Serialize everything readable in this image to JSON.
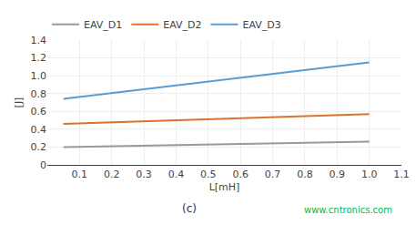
{
  "chart_data": {
    "type": "line",
    "xlabel": "L[mH]",
    "ylabel": "[J]",
    "series": [
      {
        "name": "EAV_D1",
        "color": "#999999",
        "x": [
          0.05,
          1.0
        ],
        "values": [
          0.2,
          0.26
        ]
      },
      {
        "name": "EAV_D2",
        "color": "#E07030",
        "x": [
          0.05,
          1.0
        ],
        "values": [
          0.46,
          0.57
        ]
      },
      {
        "name": "EAV_D3",
        "color": "#5B9BD5",
        "x": [
          0.05,
          1.0
        ],
        "values": [
          0.74,
          1.15
        ]
      }
    ],
    "xlim": [
      0.0,
      1.1
    ],
    "xticks": [
      0.1,
      0.2,
      0.3,
      0.4,
      0.5,
      0.6,
      0.7,
      0.8,
      0.9,
      {
        "value": 1.0,
        "label": "1.0"
      },
      1.1
    ],
    "ylim": [
      0,
      1.4
    ],
    "yticks": [
      0,
      0.2,
      0.4,
      0.6,
      0.8,
      {
        "value": 1.0,
        "label": "1.0"
      },
      1.2,
      1.4
    ],
    "grid": true,
    "legend": "top",
    "annotations": [
      {
        "text": "(c)"
      },
      {
        "text": "www.cntronics.com",
        "color": "#00BB44"
      }
    ]
  }
}
